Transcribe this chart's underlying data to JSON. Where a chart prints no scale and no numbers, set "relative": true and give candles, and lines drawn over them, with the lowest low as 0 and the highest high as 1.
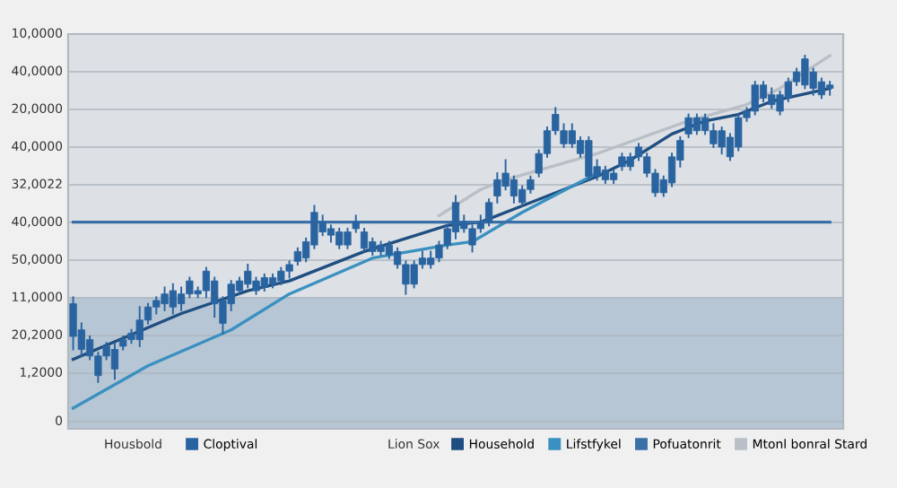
{
  "chart_data": {
    "type": "candlestick",
    "relative": true,
    "categories": [
      null,
      null,
      null,
      null,
      null,
      null,
      null,
      null,
      null,
      null,
      null,
      null,
      null,
      null,
      null,
      null,
      null,
      null,
      null,
      null,
      null,
      null,
      null,
      null,
      null,
      null,
      null,
      null,
      null,
      null,
      null,
      null,
      null,
      null,
      null,
      null,
      null,
      null,
      null,
      null,
      null,
      null,
      null,
      null,
      null,
      null,
      null,
      null,
      null,
      null,
      null,
      null,
      null,
      null,
      null,
      null,
      null,
      null,
      null,
      null,
      null,
      null,
      null,
      null,
      null,
      null,
      null,
      null,
      null,
      null,
      null,
      null,
      null,
      null,
      null,
      null,
      null,
      null,
      null,
      null,
      null,
      null,
      null,
      null,
      null,
      null,
      null,
      null,
      null,
      null,
      null,
      null
    ],
    "series": [
      {
        "name": "Cloptival",
        "type": "candlestick",
        "color": "#2a64a0",
        "ohlc": [
          [
            0.14,
            0.26,
            0.1,
            0.24
          ],
          [
            0.1,
            0.18,
            0.08,
            0.16
          ],
          [
            0.08,
            0.14,
            0.07,
            0.13
          ],
          [
            0.02,
            0.09,
            0,
            0.08
          ],
          [
            0.08,
            0.12,
            0.07,
            0.11
          ],
          [
            0.04,
            0.12,
            0.01,
            0.1
          ],
          [
            0.11,
            0.14,
            0.1,
            0.13
          ],
          [
            0.13,
            0.16,
            0.12,
            0.15
          ],
          [
            0.13,
            0.23,
            0.11,
            0.19
          ],
          [
            0.19,
            0.24,
            0.18,
            0.23
          ],
          [
            0.23,
            0.26,
            0.21,
            0.25
          ],
          [
            0.24,
            0.29,
            0.22,
            0.27
          ],
          [
            0.23,
            0.3,
            0.21,
            0.28
          ],
          [
            0.24,
            0.29,
            0.22,
            0.27
          ],
          [
            0.27,
            0.32,
            0.26,
            0.31
          ],
          [
            0.27,
            0.29,
            0.26,
            0.28
          ],
          [
            0.28,
            0.35,
            0.26,
            0.34
          ],
          [
            0.24,
            0.32,
            0.2,
            0.31
          ],
          [
            0.18,
            0.26,
            0.15,
            0.25
          ],
          [
            0.24,
            0.31,
            0.22,
            0.3
          ],
          [
            0.28,
            0.32,
            0.27,
            0.31
          ],
          [
            0.3,
            0.36,
            0.29,
            0.34
          ],
          [
            0.28,
            0.32,
            0.27,
            0.31
          ],
          [
            0.29,
            0.33,
            0.28,
            0.32
          ],
          [
            0.3,
            0.33,
            0.29,
            0.32
          ],
          [
            0.31,
            0.35,
            0.3,
            0.34
          ],
          [
            0.34,
            0.37,
            0.32,
            0.36
          ],
          [
            0.37,
            0.41,
            0.36,
            0.4
          ],
          [
            0.38,
            0.44,
            0.37,
            0.43
          ],
          [
            0.42,
            0.54,
            0.41,
            0.52
          ],
          [
            0.46,
            0.51,
            0.45,
            0.49
          ],
          [
            0.45,
            0.48,
            0.43,
            0.47
          ],
          [
            0.42,
            0.47,
            0.41,
            0.46
          ],
          [
            0.42,
            0.47,
            0.41,
            0.46
          ],
          [
            0.47,
            0.51,
            0.46,
            0.49
          ],
          [
            0.41,
            0.47,
            0.4,
            0.46
          ],
          [
            0.4,
            0.44,
            0.39,
            0.43
          ],
          [
            0.4,
            0.43,
            0.39,
            0.42
          ],
          [
            0.39,
            0.43,
            0.38,
            0.42
          ],
          [
            0.36,
            0.41,
            0.35,
            0.4
          ],
          [
            0.3,
            0.37,
            0.27,
            0.36
          ],
          [
            0.3,
            0.37,
            0.29,
            0.36
          ],
          [
            0.36,
            0.4,
            0.35,
            0.38
          ],
          [
            0.36,
            0.4,
            0.35,
            0.38
          ],
          [
            0.38,
            0.43,
            0.37,
            0.42
          ],
          [
            0.42,
            0.48,
            0.41,
            0.47
          ],
          [
            0.46,
            0.57,
            0.44,
            0.55
          ],
          [
            0.47,
            0.51,
            0.46,
            0.49
          ],
          [
            0.42,
            0.48,
            0.4,
            0.47
          ],
          [
            0.47,
            0.51,
            0.46,
            0.49
          ],
          [
            0.49,
            0.56,
            0.48,
            0.55
          ],
          [
            0.57,
            0.64,
            0.55,
            0.62
          ],
          [
            0.6,
            0.68,
            0.59,
            0.64
          ],
          [
            0.57,
            0.63,
            0.55,
            0.62
          ],
          [
            0.55,
            0.6,
            0.54,
            0.59
          ],
          [
            0.59,
            0.63,
            0.58,
            0.62
          ],
          [
            0.64,
            0.71,
            0.63,
            0.7
          ],
          [
            0.7,
            0.78,
            0.69,
            0.77
          ],
          [
            0.77,
            0.84,
            0.76,
            0.82
          ],
          [
            0.73,
            0.79,
            0.72,
            0.77
          ],
          [
            0.73,
            0.79,
            0.72,
            0.77
          ],
          [
            0.7,
            0.75,
            0.69,
            0.74
          ],
          [
            0.63,
            0.75,
            0.62,
            0.74
          ],
          [
            0.63,
            0.68,
            0.62,
            0.66
          ],
          [
            0.62,
            0.66,
            0.61,
            0.65
          ],
          [
            0.62,
            0.65,
            0.61,
            0.64
          ],
          [
            0.66,
            0.7,
            0.65,
            0.69
          ],
          [
            0.66,
            0.7,
            0.65,
            0.69
          ],
          [
            0.69,
            0.73,
            0.68,
            0.72
          ],
          [
            0.64,
            0.7,
            0.63,
            0.69
          ],
          [
            0.58,
            0.65,
            0.57,
            0.64
          ],
          [
            0.58,
            0.63,
            0.57,
            0.62
          ],
          [
            0.61,
            0.7,
            0.6,
            0.69
          ],
          [
            0.68,
            0.75,
            0.66,
            0.74
          ],
          [
            0.76,
            0.82,
            0.75,
            0.81
          ],
          [
            0.77,
            0.82,
            0.76,
            0.81
          ],
          [
            0.77,
            0.82,
            0.76,
            0.81
          ],
          [
            0.73,
            0.79,
            0.72,
            0.77
          ],
          [
            0.72,
            0.78,
            0.7,
            0.77
          ],
          [
            0.69,
            0.76,
            0.68,
            0.75
          ],
          [
            0.72,
            0.82,
            0.71,
            0.81
          ],
          [
            0.81,
            0.84,
            0.8,
            0.83
          ],
          [
            0.83,
            0.92,
            0.82,
            0.91
          ],
          [
            0.87,
            0.92,
            0.86,
            0.91
          ],
          [
            0.85,
            0.9,
            0.84,
            0.88
          ],
          [
            0.83,
            0.89,
            0.82,
            0.88
          ],
          [
            0.87,
            0.93,
            0.86,
            0.92
          ],
          [
            0.92,
            0.96,
            0.91,
            0.95
          ],
          [
            0.91,
            1,
            0.9,
            0.99
          ],
          [
            0.9,
            0.96,
            0.88,
            0.95
          ],
          [
            0.88,
            0.93,
            0.87,
            0.92
          ],
          [
            0.9,
            0.92,
            0.88,
            0.91
          ]
        ]
      },
      {
        "name": "Household",
        "type": "line",
        "color": "#1f4e80",
        "values": [
          0.07,
          null,
          null,
          null,
          null,
          null,
          null,
          null,
          null,
          null,
          null,
          null,
          null,
          0.21,
          null,
          null,
          null,
          null,
          null,
          null,
          null,
          0.28,
          null,
          null,
          null,
          null,
          0.31,
          null,
          null,
          null,
          null,
          null,
          null,
          null,
          null,
          0.4,
          null,
          null,
          null,
          null,
          null,
          null,
          null,
          null,
          null,
          0.48,
          null,
          null,
          null,
          0.49,
          null,
          null,
          null,
          null,
          0.54,
          null,
          null,
          null,
          null,
          null,
          null,
          null,
          null,
          0.63,
          null,
          null,
          null,
          0.68,
          null,
          null,
          null,
          null,
          0.76,
          null,
          null,
          null,
          0.8,
          null,
          null,
          null,
          0.82,
          null,
          null,
          null,
          0.86,
          null,
          null,
          null,
          null,
          null,
          null,
          0.9
        ]
      },
      {
        "name": "Lifstfykel",
        "type": "line",
        "color": "#3a90c0",
        "values": [
          -0.08,
          null,
          null,
          null,
          null,
          null,
          null,
          null,
          null,
          0.05,
          null,
          null,
          null,
          null,
          null,
          null,
          null,
          null,
          null,
          0.16,
          null,
          null,
          null,
          null,
          null,
          null,
          0.27,
          null,
          null,
          null,
          null,
          null,
          null,
          null,
          null,
          null,
          0.38,
          null,
          null,
          null,
          null,
          null,
          null,
          null,
          null,
          0.42,
          null,
          null,
          0.43,
          null,
          null,
          null,
          null,
          null,
          0.52,
          null,
          null,
          null,
          null,
          null,
          null,
          null,
          null,
          0.64,
          null,
          null,
          null,
          null,
          null,
          null,
          null,
          null,
          null,
          null,
          null,
          null,
          null,
          null,
          null,
          null,
          null,
          null,
          null,
          null,
          null,
          null,
          null,
          null,
          null,
          null,
          null,
          null
        ]
      },
      {
        "name": "Pofuatonrit",
        "type": "line",
        "color": "#3b6fa8",
        "values": [
          0.49,
          null,
          null,
          null,
          null,
          null,
          null,
          null,
          null,
          null,
          null,
          null,
          null,
          null,
          null,
          null,
          null,
          null,
          null,
          null,
          null,
          null,
          null,
          null,
          null,
          null,
          null,
          null,
          null,
          null,
          null,
          null,
          null,
          null,
          null,
          null,
          null,
          null,
          null,
          null,
          null,
          null,
          null,
          null,
          null,
          null,
          null,
          null,
          null,
          null,
          null,
          null,
          null,
          null,
          null,
          null,
          null,
          null,
          null,
          null,
          null,
          null,
          null,
          null,
          null,
          null,
          null,
          null,
          null,
          null,
          null,
          null,
          null,
          null,
          null,
          null,
          null,
          null,
          null,
          null,
          null,
          null,
          null,
          null,
          null,
          null,
          null,
          null,
          null,
          null,
          null,
          0.49
        ]
      },
      {
        "name": "Mtonl bonral Stard",
        "type": "line",
        "color": "#b8bfc6",
        "values": [
          null,
          null,
          null,
          null,
          null,
          null,
          null,
          null,
          null,
          null,
          null,
          null,
          null,
          null,
          null,
          null,
          null,
          null,
          null,
          null,
          null,
          null,
          null,
          null,
          null,
          null,
          null,
          null,
          null,
          null,
          null,
          null,
          null,
          null,
          null,
          null,
          null,
          null,
          null,
          null,
          null,
          null,
          null,
          null,
          0.51,
          null,
          null,
          null,
          null,
          0.59,
          null,
          null,
          0.62,
          null,
          null,
          null,
          null,
          null,
          null,
          null,
          null,
          null,
          null,
          0.7,
          null,
          null,
          null,
          null,
          null,
          null,
          null,
          null,
          null,
          null,
          0.8,
          null,
          null,
          null,
          null,
          null,
          null,
          0.85,
          null,
          null,
          null,
          0.9,
          null,
          null,
          null,
          null,
          null,
          1
        ]
      }
    ],
    "bands": [
      {
        "axis": "y",
        "from": -0.14,
        "to": 0.26,
        "color": "#b7c6d4"
      }
    ],
    "grid": "y",
    "legend": "bottom",
    "annotations": [
      "Housbold",
      "Lion Sox",
      "10,0000",
      "40,0000",
      "20,0000",
      "40,0000",
      "32,0022",
      "40,0000",
      "50,0000",
      "11,0000",
      "20,2000",
      "1,2000",
      "0"
    ]
  }
}
